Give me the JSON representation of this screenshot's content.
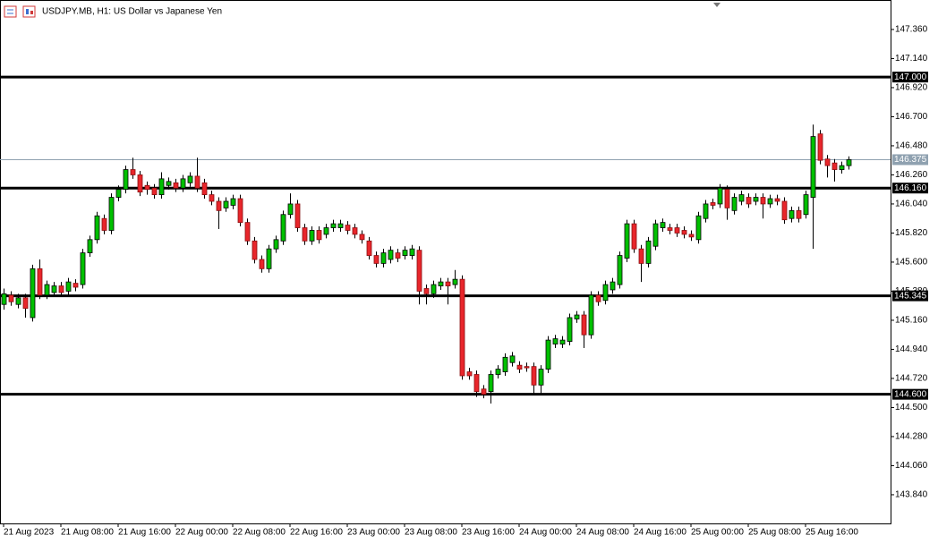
{
  "chart_data": {
    "type": "candlestick",
    "title": "USDJPY.MB, H1:  US Dollar vs Japanese Yen",
    "categories": [
      "21 Aug 2023",
      null,
      null,
      null,
      null,
      null,
      null,
      null,
      "21 Aug 08:00",
      null,
      null,
      null,
      null,
      null,
      null,
      null,
      "21 Aug 16:00",
      null,
      null,
      null,
      null,
      null,
      null,
      null,
      "22 Aug 00:00",
      null,
      null,
      null,
      null,
      null,
      null,
      null,
      "22 Aug 08:00",
      null,
      null,
      null,
      null,
      null,
      null,
      null,
      "22 Aug 16:00",
      null,
      null,
      null,
      null,
      null,
      null,
      null,
      "23 Aug 00:00",
      null,
      null,
      null,
      null,
      null,
      null,
      null,
      "23 Aug 08:00",
      null,
      null,
      null,
      null,
      null,
      null,
      null,
      "23 Aug 16:00",
      null,
      null,
      null,
      null,
      null,
      null,
      null,
      "24 Aug 00:00",
      null,
      null,
      null,
      null,
      null,
      null,
      null,
      "24 Aug 08:00",
      null,
      null,
      null,
      null,
      null,
      null,
      null,
      "24 Aug 16:00",
      null,
      null,
      null,
      null,
      null,
      null,
      null,
      "25 Aug 00:00",
      null,
      null,
      null,
      null,
      null,
      null,
      null,
      "25 Aug 08:00",
      null,
      null,
      null,
      null,
      null,
      null,
      null,
      "25 Aug 16:00",
      null,
      null,
      null,
      null,
      null,
      null
    ],
    "open": [
      145.28,
      145.35,
      145.28,
      145.33,
      145.18,
      145.55,
      145.35,
      145.37,
      145.42,
      145.38,
      145.44,
      145.43,
      145.67,
      145.77,
      145.93,
      145.84,
      146.09,
      146.15,
      146.3,
      146.26,
      146.18,
      146.16,
      146.11,
      146.18,
      146.2,
      146.16,
      146.2,
      146.25,
      146.2,
      146.11,
      146.06,
      146.01,
      146.03,
      146.08,
      145.9,
      145.76,
      145.62,
      145.55,
      145.7,
      145.76,
      145.96,
      146.04,
      145.86,
      145.76,
      145.84,
      145.81,
      145.86,
      145.86,
      145.88,
      145.86,
      145.81,
      145.76,
      145.65,
      145.59,
      145.62,
      145.67,
      145.65,
      145.65,
      145.69,
      145.4,
      145.36,
      145.42,
      145.45,
      145.43,
      145.47,
      144.77,
      144.75,
      144.64,
      144.62,
      144.75,
      144.77,
      144.84,
      144.82,
      144.81,
      144.81,
      144.67,
      144.79,
      144.98,
      144.98,
      145.0,
      145.17,
      145.2,
      145.05,
      145.35,
      145.31,
      145.39,
      145.43,
      145.63,
      145.89,
      145.7,
      145.59,
      145.72,
      145.86,
      145.86,
      145.86,
      145.84,
      145.81,
      145.77,
      145.93,
      146.05,
      146.04,
      146.15,
      145.99,
      146.06,
      146.09,
      146.06,
      146.09,
      146.04,
      146.08,
      146.06,
      145.93,
      145.99,
      145.96,
      146.09,
      146.57,
      146.38,
      146.35,
      146.3,
      146.33
    ],
    "high": [
      145.4,
      145.38,
      145.36,
      145.36,
      145.58,
      145.62,
      145.46,
      145.45,
      145.45,
      145.48,
      145.47,
      145.7,
      145.8,
      145.98,
      145.96,
      146.12,
      146.18,
      146.33,
      146.39,
      146.29,
      146.21,
      146.19,
      146.28,
      146.24,
      146.23,
      146.26,
      146.28,
      146.39,
      146.23,
      146.14,
      146.09,
      146.09,
      146.11,
      146.11,
      145.93,
      145.79,
      145.65,
      145.73,
      145.8,
      145.99,
      146.12,
      146.07,
      145.89,
      145.87,
      145.87,
      145.89,
      145.92,
      145.92,
      145.91,
      145.89,
      145.84,
      145.79,
      145.68,
      145.7,
      145.72,
      145.7,
      145.72,
      145.73,
      145.72,
      145.43,
      145.46,
      145.48,
      145.48,
      145.54,
      145.5,
      144.8,
      144.78,
      144.67,
      144.78,
      144.82,
      144.91,
      144.92,
      144.85,
      144.84,
      144.84,
      144.82,
      145.04,
      145.05,
      145.04,
      145.21,
      145.23,
      145.23,
      145.38,
      145.38,
      145.46,
      145.48,
      145.68,
      145.92,
      145.92,
      145.73,
      145.79,
      145.92,
      145.93,
      145.89,
      145.89,
      145.87,
      145.84,
      145.98,
      146.07,
      146.08,
      146.19,
      146.18,
      146.12,
      146.14,
      146.12,
      146.12,
      146.12,
      146.11,
      146.11,
      146.09,
      146.02,
      146.02,
      146.14,
      146.64,
      146.6,
      146.41,
      146.38,
      146.36,
      146.4
    ],
    "low": [
      145.24,
      145.27,
      145.25,
      145.18,
      145.15,
      145.32,
      145.32,
      145.34,
      145.34,
      145.35,
      145.38,
      145.4,
      145.64,
      145.74,
      145.81,
      145.81,
      146.06,
      146.12,
      146.23,
      146.1,
      146.11,
      146.08,
      146.08,
      146.15,
      146.13,
      146.13,
      146.17,
      146.13,
      146.08,
      146.03,
      145.85,
      145.98,
      146.0,
      145.87,
      145.73,
      145.59,
      145.52,
      145.52,
      145.67,
      145.73,
      145.93,
      145.83,
      145.73,
      145.73,
      145.74,
      145.78,
      145.83,
      145.83,
      145.81,
      145.78,
      145.74,
      145.62,
      145.56,
      145.56,
      145.59,
      145.6,
      145.62,
      145.62,
      145.28,
      145.28,
      145.33,
      145.39,
      145.28,
      145.4,
      144.71,
      144.71,
      144.58,
      144.57,
      144.53,
      144.72,
      144.74,
      144.81,
      144.76,
      144.77,
      144.6,
      144.6,
      144.76,
      144.95,
      144.95,
      144.97,
      145.14,
      144.95,
      145.02,
      145.27,
      145.28,
      145.36,
      145.4,
      145.6,
      145.67,
      145.45,
      145.56,
      145.69,
      145.83,
      145.81,
      145.79,
      145.78,
      145.76,
      145.74,
      145.9,
      146.0,
      146.01,
      145.92,
      145.96,
      146.03,
      146.01,
      146.03,
      145.93,
      146.01,
      146.03,
      145.89,
      145.9,
      145.9,
      145.93,
      145.7,
      146.34,
      146.24,
      146.21,
      146.27,
      146.3
    ],
    "close": [
      145.36,
      145.3,
      145.33,
      145.25,
      145.55,
      145.35,
      145.43,
      145.42,
      145.37,
      145.45,
      145.41,
      145.67,
      145.77,
      145.95,
      145.84,
      146.09,
      146.15,
      146.3,
      146.26,
      146.13,
      146.15,
      146.11,
      146.23,
      146.21,
      146.16,
      146.23,
      146.25,
      146.16,
      146.11,
      146.06,
      145.99,
      146.06,
      146.08,
      145.9,
      145.76,
      145.62,
      145.55,
      145.7,
      145.77,
      145.96,
      146.04,
      145.86,
      145.76,
      145.84,
      145.77,
      145.86,
      145.89,
      145.89,
      145.84,
      145.81,
      145.77,
      145.65,
      145.59,
      145.67,
      145.69,
      145.63,
      145.69,
      145.7,
      145.38,
      145.36,
      145.43,
      145.45,
      145.42,
      145.47,
      144.74,
      144.74,
      144.62,
      144.6,
      144.75,
      144.79,
      144.88,
      144.89,
      144.79,
      144.8,
      144.67,
      144.79,
      145.01,
      145.02,
      145.01,
      145.18,
      145.2,
      145.05,
      145.35,
      145.3,
      145.43,
      145.45,
      145.65,
      145.89,
      145.7,
      145.59,
      145.76,
      145.89,
      145.9,
      145.84,
      145.82,
      145.81,
      145.79,
      145.95,
      146.04,
      146.03,
      146.16,
      146.01,
      146.09,
      146.11,
      146.04,
      146.09,
      146.04,
      146.08,
      146.06,
      145.92,
      145.99,
      145.93,
      146.11,
      146.55,
      146.37,
      146.33,
      146.3,
      146.33,
      146.375
    ],
    "up_color": "#00c000",
    "down_color": "#e8262b",
    "ylim": [
      143.623,
      147.583
    ],
    "yticks": [
      {
        "value": 147.36,
        "label": "147.360"
      },
      {
        "value": 147.14,
        "label": "147.140"
      },
      {
        "value": 146.92,
        "label": "146.920"
      },
      {
        "value": 146.7,
        "label": "146.700"
      },
      {
        "value": 146.48,
        "label": "146.480"
      },
      {
        "value": 146.26,
        "label": "146.260"
      },
      {
        "value": 146.04,
        "label": "146.040"
      },
      {
        "value": 145.82,
        "label": "145.820"
      },
      {
        "value": 145.6,
        "label": "145.600"
      },
      {
        "value": 145.38,
        "label": "145.380"
      },
      {
        "value": 145.16,
        "label": "145.160"
      },
      {
        "value": 144.94,
        "label": "144.940"
      },
      {
        "value": 144.72,
        "label": "144.720"
      },
      {
        "value": 144.5,
        "label": "144.500"
      },
      {
        "value": 144.28,
        "label": "144.280"
      },
      {
        "value": 144.06,
        "label": "144.060"
      },
      {
        "value": 143.84,
        "label": "143.840"
      }
    ],
    "levels": [
      {
        "value": 147,
        "label": "147.000"
      },
      {
        "value": 146.16,
        "label": "146.160"
      },
      {
        "value": 145.345,
        "label": "145.345"
      },
      {
        "value": 144.6,
        "label": "144.600"
      }
    ],
    "current_price": {
      "value": 146.375,
      "label": "146.375"
    }
  }
}
